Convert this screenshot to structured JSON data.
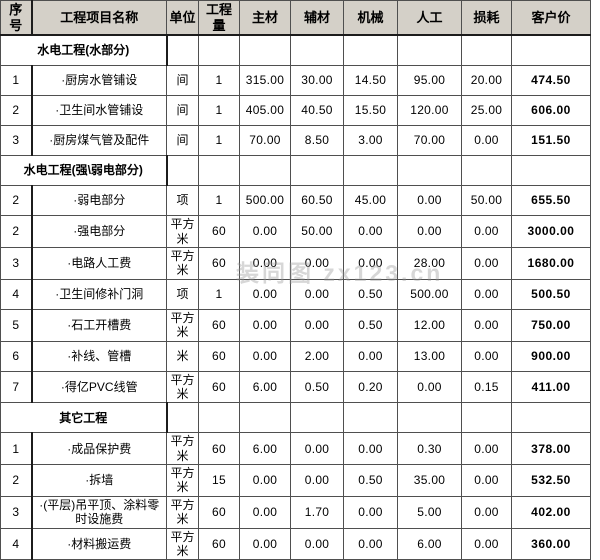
{
  "watermark": {
    "text": "装同图 zx123.cn"
  },
  "colors": {
    "header_bg": "#d4d0c8",
    "section_bg": "#ccffff",
    "border": "#4f4f4f",
    "text": "#000000"
  },
  "table": {
    "columns": [
      "序号",
      "工程项目名称",
      "单位",
      "工程量",
      "主材",
      "辅材",
      "机械",
      "人工",
      "损耗",
      "客户价"
    ],
    "rows": [
      {
        "type": "section",
        "label": "水电工程(水部分)"
      },
      {
        "type": "item",
        "no": "1",
        "name": "·厨房水管铺设",
        "unit": "间",
        "qty": "1",
        "main": "315.00",
        "aux": "30.00",
        "mach": "14.50",
        "labor": "95.00",
        "loss": "20.00",
        "price": "474.50"
      },
      {
        "type": "item",
        "no": "2",
        "name": "·卫生间水管铺设",
        "unit": "间",
        "qty": "1",
        "main": "405.00",
        "aux": "40.50",
        "mach": "15.50",
        "labor": "120.00",
        "loss": "25.00",
        "price": "606.00"
      },
      {
        "type": "item",
        "no": "3",
        "name": "·厨房煤气管及配件",
        "unit": "间",
        "qty": "1",
        "main": "70.00",
        "aux": "8.50",
        "mach": "3.00",
        "labor": "70.00",
        "loss": "0.00",
        "price": "151.50"
      },
      {
        "type": "section",
        "label": "水电工程(强\\弱电部分)"
      },
      {
        "type": "item",
        "no": "2",
        "name": "·弱电部分",
        "unit": "项",
        "qty": "1",
        "main": "500.00",
        "aux": "60.50",
        "mach": "45.00",
        "labor": "0.00",
        "loss": "50.00",
        "price": "655.50"
      },
      {
        "type": "item",
        "no": "2",
        "name": "·强电部分",
        "unit": "平方米",
        "qty": "60",
        "main": "0.00",
        "aux": "50.00",
        "mach": "0.00",
        "labor": "0.00",
        "loss": "0.00",
        "price": "3000.00"
      },
      {
        "type": "item",
        "no": "3",
        "name": "·电路人工费",
        "unit": "平方米",
        "qty": "60",
        "main": "0.00",
        "aux": "0.00",
        "mach": "0.00",
        "labor": "28.00",
        "loss": "0.00",
        "price": "1680.00"
      },
      {
        "type": "item",
        "no": "4",
        "name": "·卫生间修补门洞",
        "unit": "项",
        "qty": "1",
        "main": "0.00",
        "aux": "0.00",
        "mach": "0.50",
        "labor": "500.00",
        "loss": "0.00",
        "price": "500.50"
      },
      {
        "type": "item",
        "no": "5",
        "name": "·石工开槽费",
        "unit": "平方米",
        "qty": "60",
        "main": "0.00",
        "aux": "0.00",
        "mach": "0.50",
        "labor": "12.00",
        "loss": "0.00",
        "price": "750.00"
      },
      {
        "type": "item",
        "no": "6",
        "name": "·补线、管槽",
        "unit": "米",
        "qty": "60",
        "main": "0.00",
        "aux": "2.00",
        "mach": "0.00",
        "labor": "13.00",
        "loss": "0.00",
        "price": "900.00"
      },
      {
        "type": "item",
        "no": "7",
        "name": "·得亿PVC线管",
        "unit": "平方米",
        "qty": "60",
        "main": "6.00",
        "aux": "0.50",
        "mach": "0.20",
        "labor": "0.00",
        "loss": "0.15",
        "price": "411.00"
      },
      {
        "type": "section",
        "label": "其它工程"
      },
      {
        "type": "item",
        "no": "1",
        "name": "·成品保护费",
        "unit": "平方米",
        "qty": "60",
        "main": "6.00",
        "aux": "0.00",
        "mach": "0.00",
        "labor": "0.30",
        "loss": "0.00",
        "price": "378.00"
      },
      {
        "type": "item",
        "no": "2",
        "name": "·拆墙",
        "unit": "平方米",
        "qty": "15",
        "main": "0.00",
        "aux": "0.00",
        "mach": "0.50",
        "labor": "35.00",
        "loss": "0.00",
        "price": "532.50"
      },
      {
        "type": "item",
        "no": "3",
        "name": "·(平层)吊平顶、涂料零时设施费",
        "unit": "平方米",
        "qty": "60",
        "main": "0.00",
        "aux": "1.70",
        "mach": "0.00",
        "labor": "5.00",
        "loss": "0.00",
        "price": "402.00"
      },
      {
        "type": "item",
        "no": "4",
        "name": "·材料搬运费",
        "unit": "平方米",
        "qty": "60",
        "main": "0.00",
        "aux": "0.00",
        "mach": "0.00",
        "labor": "6.00",
        "loss": "0.00",
        "price": "360.00"
      }
    ]
  }
}
